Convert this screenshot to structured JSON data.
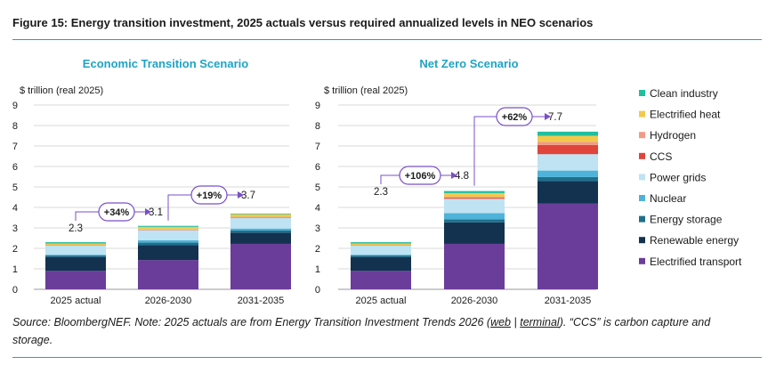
{
  "figure": {
    "title": "Figure 15: Energy transition investment, 2025 actuals versus required annualized levels in NEO scenarios"
  },
  "source": {
    "prefix": "Source: BloombergNEF. Note: 2025 actuals are from Energy Transition Investment Trends 2026 (",
    "link_web": "web",
    "separator": " | ",
    "link_terminal": "terminal",
    "suffix": "). “CCS” is carbon capture and storage."
  },
  "colors": {
    "Electrified transport": "#6a3d9a",
    "Renewable energy": "#12324f",
    "Energy storage": "#1f6f8b",
    "Nuclear": "#4fb3d9",
    "Power grids": "#bfe3f2",
    "CCS": "#e0443a",
    "Hydrogen": "#f29a86",
    "Electrified heat": "#f2c94c",
    "Clean industry": "#1fbf9f",
    "annotation": "#7a4fc8",
    "title": "#1fa3c4"
  },
  "chart_data": [
    {
      "type": "bar",
      "stacked": true,
      "title": "Economic Transition Scenario",
      "ylabel": "$ trillion (real 2025)",
      "ylim": [
        0,
        9
      ],
      "yticks": [
        "0",
        "1",
        "2",
        "3",
        "4",
        "5",
        "6",
        "7",
        "8",
        "9"
      ],
      "categories": [
        "2025 actual",
        "2026-2030",
        "2031-2035"
      ],
      "totals": [
        "2.3",
        "3.1",
        "3.7"
      ],
      "growth_labels": [
        "+34%",
        "+19%"
      ],
      "series": [
        {
          "name": "Electrified transport",
          "values": [
            0.9,
            1.43,
            2.22
          ]
        },
        {
          "name": "Renewable energy",
          "values": [
            0.68,
            0.72,
            0.55
          ]
        },
        {
          "name": "Energy storage",
          "values": [
            0.07,
            0.13,
            0.1
          ]
        },
        {
          "name": "Nuclear",
          "values": [
            0.04,
            0.12,
            0.1
          ]
        },
        {
          "name": "Power grids",
          "values": [
            0.45,
            0.5,
            0.53
          ]
        },
        {
          "name": "CCS",
          "values": [
            0.01,
            0.01,
            0.02
          ]
        },
        {
          "name": "Hydrogen",
          "values": [
            0.01,
            0.01,
            0.02
          ]
        },
        {
          "name": "Electrified heat",
          "values": [
            0.08,
            0.13,
            0.13
          ]
        },
        {
          "name": "Clean industry",
          "values": [
            0.06,
            0.05,
            0.03
          ]
        }
      ]
    },
    {
      "type": "bar",
      "stacked": true,
      "title": "Net Zero Scenario",
      "ylabel": "$ trillion (real 2025)",
      "ylim": [
        0,
        9
      ],
      "yticks": [
        "0",
        "1",
        "2",
        "3",
        "4",
        "5",
        "6",
        "7",
        "8",
        "9"
      ],
      "categories": [
        "2025 actual",
        "2026-2030",
        "2031-2035"
      ],
      "totals": [
        "2.3",
        "4.8",
        "7.7"
      ],
      "growth_labels": [
        "+106%",
        "+62%"
      ],
      "series": [
        {
          "name": "Electrified transport",
          "values": [
            0.9,
            2.22,
            4.18
          ]
        },
        {
          "name": "Renewable energy",
          "values": [
            0.68,
            1.05,
            1.1
          ]
        },
        {
          "name": "Energy storage",
          "values": [
            0.07,
            0.15,
            0.2
          ]
        },
        {
          "name": "Nuclear",
          "values": [
            0.04,
            0.3,
            0.32
          ]
        },
        {
          "name": "Power grids",
          "values": [
            0.45,
            0.7,
            0.8
          ]
        },
        {
          "name": "CCS",
          "values": [
            0.01,
            0.05,
            0.45
          ]
        },
        {
          "name": "Hydrogen",
          "values": [
            0.01,
            0.05,
            0.15
          ]
        },
        {
          "name": "Electrified heat",
          "values": [
            0.08,
            0.18,
            0.3
          ]
        },
        {
          "name": "Clean industry",
          "values": [
            0.06,
            0.1,
            0.2
          ]
        }
      ]
    }
  ],
  "legend": [
    "Clean industry",
    "Electrified heat",
    "Hydrogen",
    "CCS",
    "Power grids",
    "Nuclear",
    "Energy storage",
    "Renewable energy",
    "Electrified transport"
  ]
}
